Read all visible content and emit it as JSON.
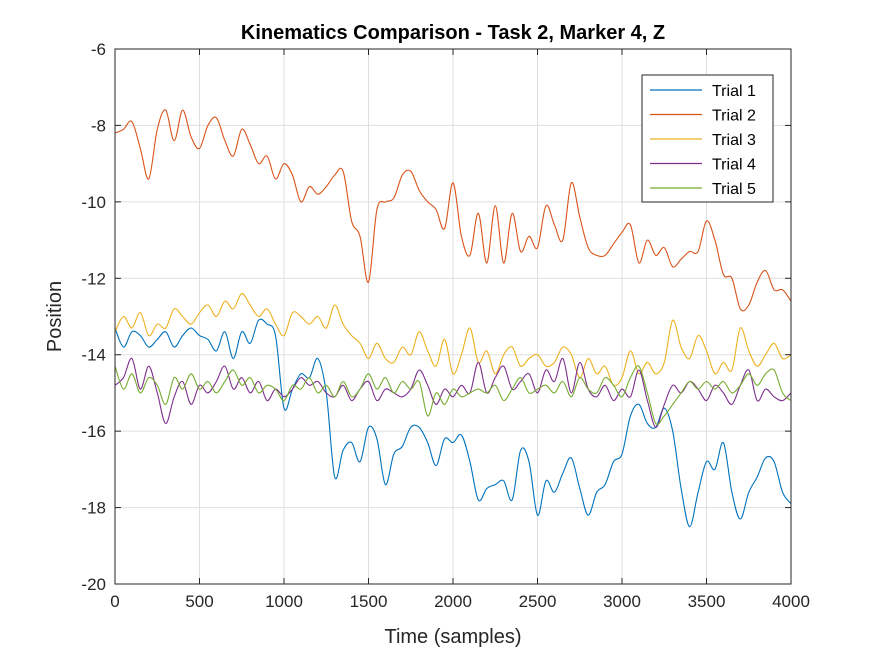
{
  "chart_data": {
    "type": "line",
    "title": "Kinematics Comparison - Task 2, Marker 4, Z",
    "xlabel": "Time (samples)",
    "ylabel": "Position",
    "xlim": [
      0,
      4000
    ],
    "ylim": [
      -20,
      -6
    ],
    "xticks": [
      0,
      500,
      1000,
      1500,
      2000,
      2500,
      3000,
      3500,
      4000
    ],
    "yticks": [
      -20,
      -18,
      -16,
      -14,
      -12,
      -10,
      -8,
      -6
    ],
    "grid": true,
    "legend_position": "top-right",
    "series": [
      {
        "name": "Trial 1",
        "color": "#0072BD",
        "x": [
          0,
          50,
          100,
          150,
          200,
          250,
          300,
          350,
          400,
          450,
          500,
          550,
          600,
          650,
          700,
          750,
          800,
          850,
          900,
          950,
          1000,
          1050,
          1100,
          1150,
          1200,
          1250,
          1300,
          1350,
          1400,
          1450,
          1500,
          1550,
          1600,
          1650,
          1700,
          1750,
          1800,
          1850,
          1900,
          1950,
          2000,
          2050,
          2100,
          2150,
          2200,
          2250,
          2300,
          2350,
          2400,
          2450,
          2500,
          2550,
          2600,
          2650,
          2700,
          2750,
          2800,
          2850,
          2900,
          2950,
          3000,
          3050,
          3100,
          3150,
          3200,
          3250,
          3300,
          3350,
          3400,
          3450,
          3500,
          3550,
          3600,
          3650,
          3700,
          3750,
          3800,
          3850,
          3900,
          3950,
          4000
        ],
        "y": [
          -13.3,
          -13.8,
          -13.4,
          -13.5,
          -13.8,
          -13.6,
          -13.4,
          -13.8,
          -13.5,
          -13.3,
          -13.5,
          -13.6,
          -13.9,
          -13.4,
          -14.1,
          -13.4,
          -13.7,
          -13.1,
          -13.2,
          -13.5,
          -15.4,
          -14.9,
          -14.5,
          -14.6,
          -14.1,
          -15.0,
          -17.2,
          -16.5,
          -16.3,
          -16.8,
          -15.9,
          -16.2,
          -17.4,
          -16.6,
          -16.4,
          -15.9,
          -15.9,
          -16.3,
          -16.9,
          -16.2,
          -16.3,
          -16.1,
          -16.8,
          -17.8,
          -17.5,
          -17.4,
          -17.3,
          -17.8,
          -16.5,
          -16.8,
          -18.2,
          -17.3,
          -17.6,
          -17.1,
          -16.7,
          -17.5,
          -18.2,
          -17.6,
          -17.4,
          -16.8,
          -16.6,
          -15.6,
          -15.3,
          -15.8,
          -15.9,
          -15.4,
          -16.0,
          -17.5,
          -18.5,
          -17.6,
          -16.8,
          -17.0,
          -16.3,
          -17.6,
          -18.3,
          -17.6,
          -17.2,
          -16.7,
          -16.8,
          -17.6,
          -17.9
        ]
      },
      {
        "name": "Trial 2",
        "color": "#D95319",
        "x": [
          0,
          50,
          100,
          150,
          200,
          250,
          300,
          350,
          400,
          450,
          500,
          550,
          600,
          650,
          700,
          750,
          800,
          850,
          900,
          950,
          1000,
          1050,
          1100,
          1150,
          1200,
          1250,
          1300,
          1350,
          1400,
          1450,
          1500,
          1550,
          1600,
          1650,
          1700,
          1750,
          1800,
          1850,
          1900,
          1950,
          2000,
          2050,
          2100,
          2150,
          2200,
          2250,
          2300,
          2350,
          2400,
          2450,
          2500,
          2550,
          2600,
          2650,
          2700,
          2750,
          2800,
          2850,
          2900,
          2950,
          3000,
          3050,
          3100,
          3150,
          3200,
          3250,
          3300,
          3350,
          3400,
          3450,
          3500,
          3550,
          3600,
          3650,
          3700,
          3750,
          3800,
          3850,
          3900,
          3950,
          4000
        ],
        "y": [
          -8.2,
          -8.1,
          -7.9,
          -8.6,
          -9.4,
          -8.1,
          -7.6,
          -8.4,
          -7.6,
          -8.3,
          -8.6,
          -8.0,
          -7.8,
          -8.4,
          -8.8,
          -8.1,
          -8.5,
          -9.0,
          -8.8,
          -9.4,
          -9.0,
          -9.3,
          -10.0,
          -9.6,
          -9.8,
          -9.6,
          -9.3,
          -9.2,
          -10.5,
          -10.9,
          -12.1,
          -10.2,
          -10.0,
          -9.9,
          -9.3,
          -9.2,
          -9.7,
          -10.0,
          -10.2,
          -10.7,
          -9.5,
          -10.9,
          -11.4,
          -10.3,
          -11.6,
          -10.1,
          -11.6,
          -10.3,
          -11.3,
          -10.9,
          -11.2,
          -10.1,
          -10.6,
          -11.0,
          -9.5,
          -10.4,
          -11.2,
          -11.4,
          -11.4,
          -11.1,
          -10.8,
          -10.6,
          -11.6,
          -11.0,
          -11.4,
          -11.2,
          -11.7,
          -11.5,
          -11.3,
          -11.3,
          -10.5,
          -11.0,
          -11.9,
          -12.0,
          -12.8,
          -12.7,
          -12.1,
          -11.8,
          -12.3,
          -12.3,
          -12.6
        ]
      },
      {
        "name": "Trial 3",
        "color": "#EDB120",
        "x": [
          0,
          50,
          100,
          150,
          200,
          250,
          300,
          350,
          400,
          450,
          500,
          550,
          600,
          650,
          700,
          750,
          800,
          850,
          900,
          950,
          1000,
          1050,
          1100,
          1150,
          1200,
          1250,
          1300,
          1350,
          1400,
          1450,
          1500,
          1550,
          1600,
          1650,
          1700,
          1750,
          1800,
          1850,
          1900,
          1950,
          2000,
          2050,
          2100,
          2150,
          2200,
          2250,
          2300,
          2350,
          2400,
          2450,
          2500,
          2550,
          2600,
          2650,
          2700,
          2750,
          2800,
          2850,
          2900,
          2950,
          3000,
          3050,
          3100,
          3150,
          3200,
          3250,
          3300,
          3350,
          3400,
          3450,
          3500,
          3550,
          3600,
          3650,
          3700,
          3750,
          3800,
          3850,
          3900,
          3950,
          4000
        ],
        "y": [
          -13.4,
          -13.0,
          -13.3,
          -12.9,
          -13.5,
          -13.2,
          -13.3,
          -12.8,
          -13.0,
          -13.2,
          -12.9,
          -12.7,
          -13.0,
          -12.6,
          -12.8,
          -12.4,
          -12.7,
          -13.0,
          -12.8,
          -13.2,
          -13.5,
          -12.9,
          -13.0,
          -13.2,
          -13.0,
          -13.3,
          -12.7,
          -13.2,
          -13.5,
          -13.7,
          -14.1,
          -13.7,
          -14.1,
          -14.2,
          -13.8,
          -14.0,
          -13.4,
          -13.9,
          -14.3,
          -13.6,
          -14.5,
          -14.0,
          -13.3,
          -14.2,
          -13.9,
          -14.5,
          -14.0,
          -13.8,
          -14.3,
          -14.1,
          -14.0,
          -14.3,
          -14.2,
          -13.8,
          -14.0,
          -14.6,
          -14.1,
          -14.5,
          -14.3,
          -14.8,
          -14.6,
          -13.9,
          -14.5,
          -14.2,
          -14.5,
          -14.2,
          -13.1,
          -13.8,
          -14.1,
          -13.5,
          -13.9,
          -14.5,
          -14.2,
          -14.4,
          -13.3,
          -13.9,
          -14.3,
          -14.0,
          -13.7,
          -14.1,
          -14.0
        ]
      },
      {
        "name": "Trial 4",
        "color": "#7E2F8E",
        "x": [
          0,
          50,
          100,
          150,
          200,
          250,
          300,
          350,
          400,
          450,
          500,
          550,
          600,
          650,
          700,
          750,
          800,
          850,
          900,
          950,
          1000,
          1050,
          1100,
          1150,
          1200,
          1250,
          1300,
          1350,
          1400,
          1450,
          1500,
          1550,
          1600,
          1650,
          1700,
          1750,
          1800,
          1850,
          1900,
          1950,
          2000,
          2050,
          2100,
          2150,
          2200,
          2250,
          2300,
          2350,
          2400,
          2450,
          2500,
          2550,
          2600,
          2650,
          2700,
          2750,
          2800,
          2850,
          2900,
          2950,
          3000,
          3050,
          3100,
          3150,
          3200,
          3250,
          3300,
          3350,
          3400,
          3450,
          3500,
          3550,
          3600,
          3650,
          3700,
          3750,
          3800,
          3850,
          3900,
          3950,
          4000
        ],
        "y": [
          -14.8,
          -14.6,
          -14.1,
          -14.9,
          -14.3,
          -15.0,
          -15.8,
          -15.1,
          -14.7,
          -15.3,
          -14.8,
          -15.0,
          -14.7,
          -14.3,
          -14.9,
          -14.6,
          -15.0,
          -14.7,
          -15.2,
          -14.9,
          -15.1,
          -14.9,
          -14.6,
          -14.8,
          -14.7,
          -15.0,
          -15.1,
          -14.8,
          -15.2,
          -14.9,
          -14.7,
          -15.2,
          -14.9,
          -15.0,
          -15.1,
          -14.9,
          -14.4,
          -14.8,
          -15.3,
          -14.9,
          -15.1,
          -14.8,
          -15.0,
          -14.2,
          -15.0,
          -14.6,
          -14.3,
          -14.9,
          -14.7,
          -14.5,
          -15.0,
          -14.4,
          -14.7,
          -14.1,
          -15.0,
          -14.2,
          -14.9,
          -15.1,
          -14.8,
          -15.2,
          -14.9,
          -15.1,
          -14.4,
          -15.2,
          -15.9,
          -15.3,
          -14.8,
          -15.0,
          -14.7,
          -14.9,
          -15.2,
          -14.8,
          -15.0,
          -15.3,
          -14.8,
          -14.4,
          -15.2,
          -14.9,
          -15.1,
          -15.2,
          -15.0
        ]
      },
      {
        "name": "Trial 5",
        "color": "#77AC30",
        "x": [
          0,
          50,
          100,
          150,
          200,
          250,
          300,
          350,
          400,
          450,
          500,
          550,
          600,
          650,
          700,
          750,
          800,
          850,
          900,
          950,
          1000,
          1050,
          1100,
          1150,
          1200,
          1250,
          1300,
          1350,
          1400,
          1450,
          1500,
          1550,
          1600,
          1650,
          1700,
          1750,
          1800,
          1850,
          1900,
          1950,
          2000,
          2050,
          2100,
          2150,
          2200,
          2250,
          2300,
          2350,
          2400,
          2450,
          2500,
          2550,
          2600,
          2650,
          2700,
          2750,
          2800,
          2850,
          2900,
          2950,
          3000,
          3050,
          3100,
          3150,
          3200,
          3250,
          3300,
          3350,
          3400,
          3450,
          3500,
          3550,
          3600,
          3650,
          3700,
          3750,
          3800,
          3850,
          3900,
          3950,
          4000
        ],
        "y": [
          -14.3,
          -14.9,
          -14.5,
          -15.0,
          -14.6,
          -14.8,
          -15.3,
          -14.6,
          -14.9,
          -14.5,
          -14.9,
          -14.7,
          -15.0,
          -14.7,
          -14.4,
          -14.8,
          -14.6,
          -15.0,
          -14.8,
          -14.9,
          -15.2,
          -14.8,
          -14.9,
          -14.6,
          -15.0,
          -14.8,
          -15.1,
          -14.7,
          -15.1,
          -14.9,
          -14.5,
          -14.9,
          -14.6,
          -15.0,
          -14.7,
          -14.9,
          -14.7,
          -15.6,
          -15.0,
          -15.3,
          -14.9,
          -15.1,
          -15.0,
          -14.9,
          -15.0,
          -14.8,
          -15.2,
          -14.9,
          -14.6,
          -15.0,
          -14.9,
          -14.8,
          -15.0,
          -14.7,
          -15.1,
          -14.6,
          -14.9,
          -15.0,
          -14.6,
          -14.8,
          -15.1,
          -14.6,
          -14.3,
          -15.0,
          -15.8,
          -15.6,
          -15.3,
          -15.0,
          -14.7,
          -14.9,
          -14.7,
          -14.9,
          -14.7,
          -15.0,
          -14.8,
          -14.5,
          -14.8,
          -14.5,
          -14.4,
          -15.0,
          -15.2
        ]
      }
    ]
  }
}
